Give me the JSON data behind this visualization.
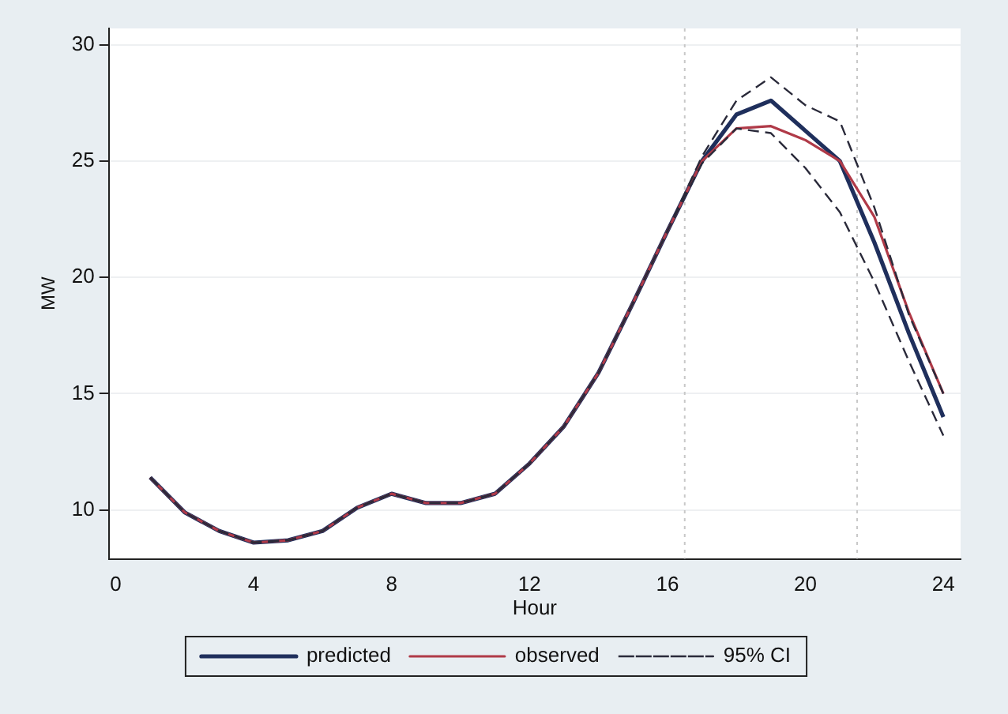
{
  "chart_data": {
    "type": "line",
    "xlabel": "Hour",
    "ylabel": "MW",
    "x": [
      1,
      2,
      3,
      4,
      5,
      6,
      7,
      8,
      9,
      10,
      11,
      12,
      13,
      14,
      15,
      16,
      17,
      18,
      19,
      20,
      21,
      22,
      23,
      24
    ],
    "series": [
      {
        "name": "predicted",
        "color": "#1f2f5c",
        "values": [
          11.4,
          9.9,
          9.1,
          8.6,
          8.7,
          9.1,
          10.1,
          10.7,
          10.3,
          10.3,
          10.7,
          12.0,
          13.6,
          15.9,
          18.9,
          22.0,
          25.0,
          27.0,
          27.6,
          26.3,
          25.0,
          21.5,
          17.6,
          14.0
        ]
      },
      {
        "name": "observed",
        "color": "#b03a48",
        "values": [
          11.4,
          9.9,
          9.1,
          8.6,
          8.7,
          9.1,
          10.1,
          10.7,
          10.3,
          10.3,
          10.7,
          12.0,
          13.6,
          15.9,
          18.9,
          22.0,
          25.0,
          26.4,
          26.5,
          25.9,
          25.0,
          22.6,
          18.5,
          15.0
        ]
      },
      {
        "name": "95% CI",
        "color": "#2a2a3a",
        "line_style": "dashed",
        "values": [
          11.4,
          9.9,
          9.1,
          8.6,
          8.7,
          9.1,
          10.1,
          10.7,
          10.3,
          10.3,
          10.7,
          12.0,
          13.6,
          15.9,
          18.9,
          22.0,
          25.2,
          27.6,
          28.6,
          27.4,
          26.7,
          23.0,
          18.4,
          15.0
        ]
      },
      {
        "color": "#2a2a3a",
        "line_style": "dashed",
        "values": [
          11.4,
          9.9,
          9.1,
          8.6,
          8.7,
          9.1,
          10.1,
          10.7,
          10.3,
          10.3,
          10.7,
          12.0,
          13.6,
          15.9,
          18.9,
          22.0,
          24.9,
          26.4,
          26.2,
          24.7,
          22.8,
          19.8,
          16.4,
          13.2
        ]
      }
    ],
    "xlim": [
      -0.2,
      24.5
    ],
    "xticks": [
      0,
      4,
      8,
      12,
      16,
      20,
      24
    ],
    "ylim": [
      7.9,
      30.7
    ],
    "yticks": [
      10,
      15,
      20,
      25,
      30
    ],
    "grid": "y",
    "legend": "bottom",
    "ref_lines": [
      {
        "axis": "x",
        "value": 16.5,
        "color": "#c8c8c8",
        "line_style": "dotted"
      },
      {
        "axis": "x",
        "value": 21.5,
        "color": "#c8c8c8",
        "line_style": "dotted"
      }
    ]
  }
}
